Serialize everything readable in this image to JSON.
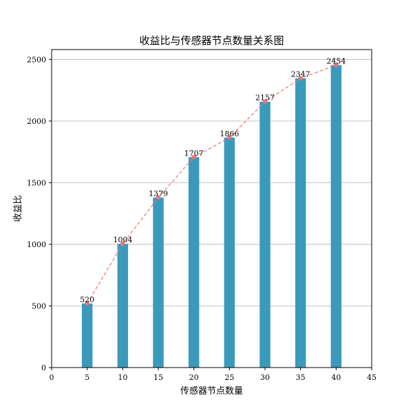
{
  "chart_data": {
    "type": "bar",
    "title": "收益比与传感器节点数量关系图",
    "xlabel": "传感器节点数量",
    "ylabel": "收益比",
    "x": [
      5,
      10,
      15,
      20,
      25,
      30,
      35,
      40
    ],
    "values": [
      520,
      1004,
      1379,
      1707,
      1866,
      2157,
      2347,
      2454
    ],
    "xlim": [
      0,
      45
    ],
    "ylim": [
      0,
      2580
    ],
    "xticks": [
      0,
      5,
      10,
      15,
      20,
      25,
      30,
      35,
      40,
      45
    ],
    "yticks": [
      0,
      500,
      1000,
      1500,
      2000,
      2500
    ],
    "grid": "y",
    "overlay_line": "dashed line with point markers through bar tops",
    "colors": {
      "bar": "#3a9abb",
      "line": "#f07272",
      "grid": "#b0b0b0"
    }
  }
}
